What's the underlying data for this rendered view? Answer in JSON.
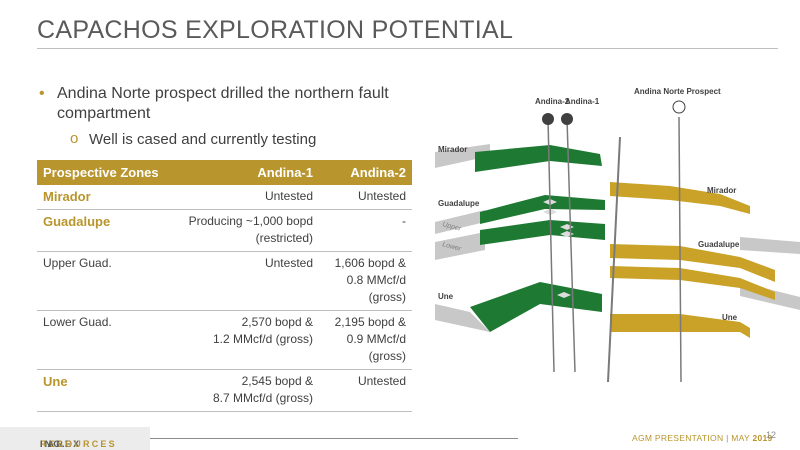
{
  "slide": {
    "title": "CAPACHOS EXPLORATION POTENTIAL",
    "bullet1": "Andina Norte prospect drilled the northern fault compartment",
    "bullet2": "Well is cased and currently testing",
    "bullet_marker": "•",
    "sub_marker": "o"
  },
  "table": {
    "headers": [
      "Prospective Zones",
      "Andina-1",
      "Andina-2"
    ],
    "rows": [
      {
        "zone": "Mirador",
        "a1": "Untested",
        "a2": "Untested"
      },
      {
        "zone": "Guadalupe",
        "a1_l1": "Producing ~1,000 bopd",
        "a1_l2": "(restricted)",
        "a2": "-"
      },
      {
        "zone": "Upper Guad.",
        "a1": "Untested",
        "a2_l1": "1,606 bopd &",
        "a2_l2": "0.8 MMcf/d",
        "a2_l3": "(gross)"
      },
      {
        "zone": "Lower Guad.",
        "a1_l1": "2,570 bopd &",
        "a1_l2": "1.2 MMcf/d (gross)",
        "a2_l1": "2,195 bopd &",
        "a2_l2": "0.9 MMcf/d",
        "a2_l3": "(gross)"
      },
      {
        "zone": "Une",
        "a1_l1": "2,545 bopd &",
        "a1_l2": "8.7 MMcf/d (gross)",
        "a2": "Untested"
      }
    ]
  },
  "diagram": {
    "label_andina2": "Andina-2",
    "label_andina1": "Andina-1",
    "label_prospect": "Andina Norte Prospect",
    "left_mirador": "Mirador",
    "left_guadalupe": "Guadalupe",
    "left_upper": "Upper",
    "left_lower": "Lower",
    "left_une": "Une",
    "right_mirador": "Mirador",
    "right_guadalupe": "Guadalupe",
    "right_une": "Une"
  },
  "footer": {
    "logo_main": "PAREX",
    "logo_gold": "RESOURCES",
    "logo_suffix": "INC.",
    "presentation": "AGM PRESENTATION",
    "separator": "|",
    "month": "MAY",
    "year": "2019",
    "page": "12"
  },
  "colors": {
    "accent_gold": "#b8952d",
    "green": "#1e7a33",
    "gray_layer": "#c8c8c8"
  }
}
